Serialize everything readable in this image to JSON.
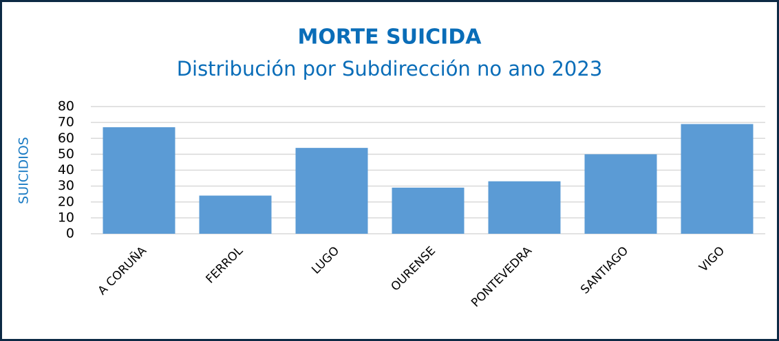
{
  "chart_data": {
    "type": "bar",
    "title": "MORTE SUICIDA",
    "subtitle": "Distribución por Subdirección no ano 2023",
    "y_label": "SUICIDIOS",
    "categories": [
      "A CORUÑA",
      "FERROL",
      "LUGO",
      "OURENSE",
      "PONTEVEDRA",
      "SANTIAGO",
      "VIGO"
    ],
    "values": [
      67,
      24,
      54,
      29,
      33,
      50,
      69
    ],
    "color": "#5b9bd5",
    "ylim": [
      0,
      80
    ],
    "yticks": [
      0,
      10,
      20,
      30,
      40,
      50,
      60,
      70,
      80
    ],
    "grid": true
  }
}
